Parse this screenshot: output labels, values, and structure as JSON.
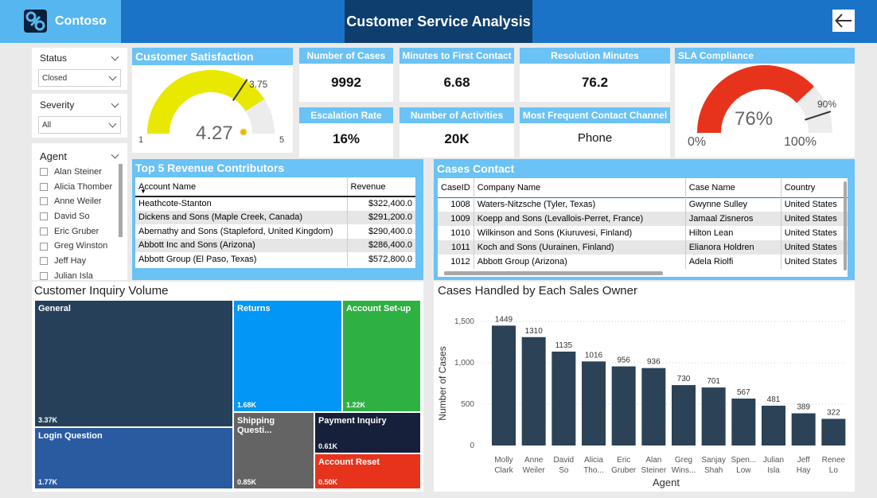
{
  "header": {
    "brand": "Contoso",
    "title": "Customer Service Analysis"
  },
  "filters": {
    "status": {
      "label": "Status",
      "value": "Closed"
    },
    "severity": {
      "label": "Severity",
      "value": "All"
    },
    "agent": {
      "label": "Agent",
      "items": [
        "Alan Steiner",
        "Alicia Thomber",
        "Anne Weiler",
        "David So",
        "Eric Gruber",
        "Greg Winston",
        "Jeff Hay",
        "Julian Isla"
      ]
    }
  },
  "satisfaction": {
    "title": "Customer Satisfaction",
    "value": "4.27",
    "target": "3.75",
    "min": "1",
    "max": "5",
    "value_num": 4.27,
    "target_num": 3.75,
    "min_num": 1,
    "max_num": 5,
    "fill_color": "#e9e800"
  },
  "kpis": {
    "cases": {
      "label": "Number of Cases",
      "value": "9992"
    },
    "first_contact": {
      "label": "Minutes to First Contact",
      "value": "6.68"
    },
    "resolution": {
      "label": "Resolution Minutes",
      "value": "76.2"
    },
    "escalation": {
      "label": "Escalation Rate",
      "value": "16%"
    },
    "activities": {
      "label": "Number of Activities",
      "value": "20K"
    },
    "channel": {
      "label": "Most Frequent Contact Channel",
      "value": "Phone"
    }
  },
  "sla": {
    "title": "SLA Compliance",
    "value": "76%",
    "target": "90%",
    "min": "0%",
    "max": "100%",
    "value_num": 0.76,
    "target_num": 0.9,
    "fill_color": "#e8331c"
  },
  "revenue": {
    "title": "Top 5 Revenue Contributors",
    "headers": [
      "Account Name",
      "Revenue"
    ],
    "rows": [
      [
        "Heathcote-Stanton",
        "$322,400.0"
      ],
      [
        "Dickens and Sons (Maple Creek, Canada)",
        "$291,200.0"
      ],
      [
        "Abernathy and Sons (Stapleford, United Kingdom)",
        "$290,400.0"
      ],
      [
        "Abbott Inc and Sons (Arizona)",
        "$286,400.0"
      ],
      [
        "Abbott Group (El Paso, Texas)",
        "$572,800.0"
      ]
    ]
  },
  "cases_contact": {
    "title": "Cases Contact",
    "headers": [
      "CaseID",
      "Company Name",
      "Case Name",
      "Country"
    ],
    "rows": [
      [
        "1008",
        "Waters-Nitzsche (Tyler, Texas)",
        "Gwynne Sulley",
        "United States"
      ],
      [
        "1009",
        "Koepp and Sons (Levallois-Perret, France)",
        "Jamaal Zisneros",
        "United States"
      ],
      [
        "1010",
        "Wilkinson and Sons (Kiuruvesi, Finland)",
        "Hilton Lean",
        "United States"
      ],
      [
        "1011",
        "Koch and Sons (Uurainen, Finland)",
        "Elianora Holdren",
        "United States"
      ],
      [
        "1012",
        "Abbott Group (Arizona)",
        "Adela Riolfi",
        "United States"
      ]
    ]
  },
  "inquiry": {
    "title": "Customer Inquiry Volume",
    "tiles": [
      {
        "label": "General",
        "value": "3.37K",
        "color": "#27405a"
      },
      {
        "label": "Returns",
        "value": "1.68K",
        "color": "#0296f6"
      },
      {
        "label": "Account Set-up",
        "value": "1.22K",
        "color": "#2eb043"
      },
      {
        "label": "Login Question",
        "value": "1.77K",
        "color": "#2a5aa0"
      },
      {
        "label": "Shipping Questi...",
        "value": "0.85K",
        "color": "#646464"
      },
      {
        "label": "Payment Inquiry",
        "value": "0.61K",
        "color": "#17203a"
      },
      {
        "label": "Account Reset",
        "value": "0.50K",
        "color": "#e8331c"
      }
    ]
  },
  "chart_data": {
    "type": "bar",
    "title": "Cases Handled by Each Sales Owner",
    "xlabel": "Agent",
    "ylabel": "Number of Cases",
    "categories": [
      [
        "Molly",
        "Clark"
      ],
      [
        "Anne",
        "Weiler"
      ],
      [
        "David",
        "So"
      ],
      [
        "Alicia",
        "Tho..."
      ],
      [
        "Eric",
        "Gruber"
      ],
      [
        "Alan",
        "Steiner"
      ],
      [
        "Greg",
        "Wins..."
      ],
      [
        "Sanjay",
        "Shah"
      ],
      [
        "Spen...",
        "Low"
      ],
      [
        "Julian",
        "Isla"
      ],
      [
        "Jeff",
        "Hay"
      ],
      [
        "Renee",
        "Lo"
      ]
    ],
    "values": [
      1449,
      1310,
      1135,
      1016,
      956,
      936,
      730,
      701,
      567,
      481,
      389,
      322
    ],
    "yticks": [
      "1,500",
      "1,000",
      "500",
      "0"
    ],
    "ylim": [
      0,
      1500
    ],
    "grid": true,
    "bar_color": "#2b4257"
  }
}
